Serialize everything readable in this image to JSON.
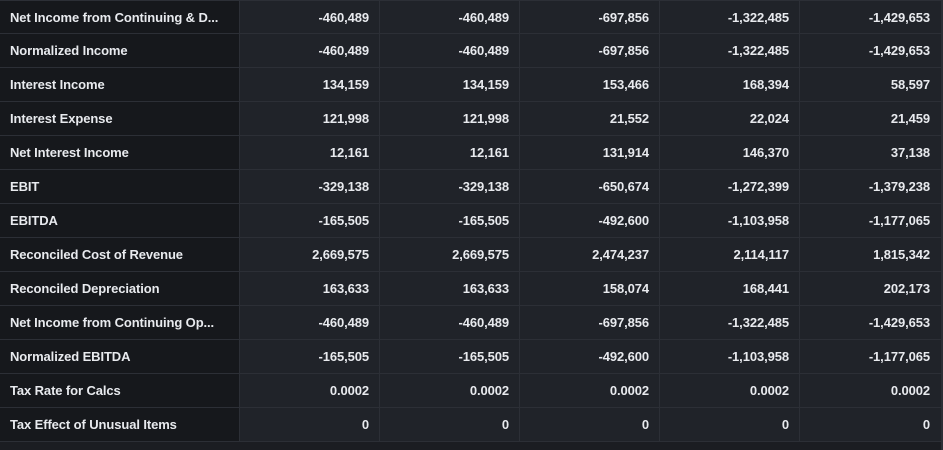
{
  "rows": [
    {
      "label": "Net Income from Continuing & D...",
      "values": [
        "-460,489",
        "-460,489",
        "-697,856",
        "-1,322,485",
        "-1,429,653"
      ]
    },
    {
      "label": "Normalized Income",
      "values": [
        "-460,489",
        "-460,489",
        "-697,856",
        "-1,322,485",
        "-1,429,653"
      ]
    },
    {
      "label": "Interest Income",
      "values": [
        "134,159",
        "134,159",
        "153,466",
        "168,394",
        "58,597"
      ]
    },
    {
      "label": "Interest Expense",
      "values": [
        "121,998",
        "121,998",
        "21,552",
        "22,024",
        "21,459"
      ]
    },
    {
      "label": "Net Interest Income",
      "values": [
        "12,161",
        "12,161",
        "131,914",
        "146,370",
        "37,138"
      ]
    },
    {
      "label": "EBIT",
      "values": [
        "-329,138",
        "-329,138",
        "-650,674",
        "-1,272,399",
        "-1,379,238"
      ]
    },
    {
      "label": "EBITDA",
      "values": [
        "-165,505",
        "-165,505",
        "-492,600",
        "-1,103,958",
        "-1,177,065"
      ]
    },
    {
      "label": "Reconciled Cost of Revenue",
      "values": [
        "2,669,575",
        "2,669,575",
        "2,474,237",
        "2,114,117",
        "1,815,342"
      ]
    },
    {
      "label": "Reconciled Depreciation",
      "values": [
        "163,633",
        "163,633",
        "158,074",
        "168,441",
        "202,173"
      ]
    },
    {
      "label": "Net Income from Continuing Op...",
      "values": [
        "-460,489",
        "-460,489",
        "-697,856",
        "-1,322,485",
        "-1,429,653"
      ]
    },
    {
      "label": "Normalized EBITDA",
      "values": [
        "-165,505",
        "-165,505",
        "-492,600",
        "-1,103,958",
        "-1,177,065"
      ]
    },
    {
      "label": "Tax Rate for Calcs",
      "values": [
        "0.0002",
        "0.0002",
        "0.0002",
        "0.0002",
        "0.0002"
      ]
    },
    {
      "label": "Tax Effect of Unusual Items",
      "values": [
        "0",
        "0",
        "0",
        "0",
        "0"
      ]
    }
  ]
}
